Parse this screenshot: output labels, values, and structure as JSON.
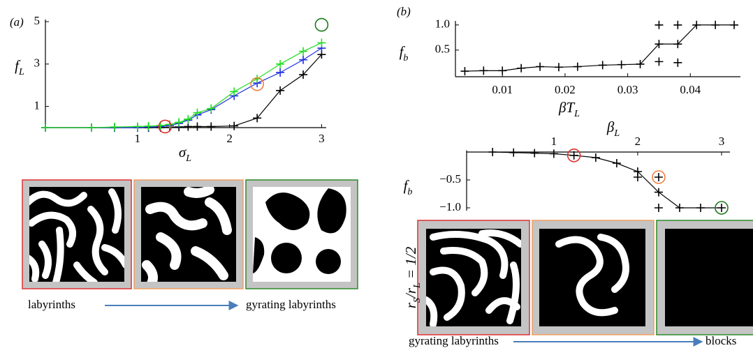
{
  "chart_data": [
    {
      "type": "line",
      "panel_label": "(a)",
      "xlabel": [
        "σ",
        "L"
      ],
      "ylabel": [
        "f",
        "L"
      ],
      "xlim": [
        0,
        3.05
      ],
      "ylim": [
        0,
        5.1
      ],
      "xticks": [
        1,
        2,
        3
      ],
      "yticks": [
        1,
        3,
        5
      ],
      "x": [
        0,
        0.5,
        0.75,
        1,
        1.12,
        1.25,
        1.35,
        1.45,
        1.55,
        1.65,
        1.8,
        2.05,
        2.3,
        2.55,
        2.8,
        3
      ],
      "series": [
        {
          "color": "#000000",
          "values": [
            0,
            0,
            0,
            0,
            0,
            0,
            0.02,
            0.03,
            0.05,
            0.05,
            0.05,
            0.08,
            0.45,
            1.75,
            2.5,
            3.45
          ]
        },
        {
          "color": "#1f2fe0",
          "values": [
            0,
            0,
            0,
            0,
            0.03,
            0.05,
            0.1,
            0.2,
            0.35,
            0.6,
            0.85,
            1.5,
            2.1,
            2.6,
            3.2,
            3.75
          ]
        },
        {
          "color": "#22dd22",
          "values": [
            0,
            0,
            0.03,
            0.05,
            0.07,
            0.1,
            0.15,
            0.25,
            0.4,
            0.7,
            0.9,
            1.7,
            2.3,
            3.0,
            3.6,
            4.0
          ]
        }
      ],
      "highlights": [
        {
          "x": 1.3,
          "y": 0.05,
          "color": "#e03030"
        },
        {
          "x": 2.3,
          "y": 2.05,
          "color": "#f08040"
        },
        {
          "x": 3,
          "y": 4.85,
          "color": "#1a7a1a"
        }
      ],
      "captions": [
        "labyrinths",
        "gyrating labyrinths"
      ]
    },
    {
      "type": "line",
      "panel_label": "(b)",
      "xlabel": [
        "βT",
        "L"
      ],
      "ylabel": [
        "f",
        "b"
      ],
      "xlim": [
        0.0025,
        0.048
      ],
      "ylim": [
        -0.03,
        1.08
      ],
      "xticks": [
        0.01,
        0.02,
        0.03,
        0.04
      ],
      "yticks": [
        0.5,
        {
          "value": 1,
          "label": "1.0"
        }
      ],
      "x": [
        0.004,
        0.007,
        0.01,
        0.013,
        0.016,
        0.019,
        0.022,
        0.026,
        0.029,
        0.032,
        0.035,
        0.038,
        0.041,
        0.044,
        0.047
      ],
      "series": [
        {
          "color": "#000000",
          "values": [
            0.08,
            0.09,
            0.09,
            0.14,
            0.17,
            0.16,
            0.17,
            0.2,
            0.21,
            0.22,
            0.62,
            0.62,
            1.0,
            1.0,
            1.0
          ]
        }
      ],
      "extra_points": {
        "x": [
          0.035,
          0.035,
          0.038,
          0.038
        ],
        "y": [
          1.0,
          0.27,
          1.0,
          0.25
        ]
      }
    },
    {
      "type": "line",
      "xlabel": [
        "β",
        "L"
      ],
      "ylabel": [
        "f",
        "b"
      ],
      "xlim": [
        -0.04,
        3.1
      ],
      "ylim": [
        -1.05,
        0.03
      ],
      "xticks": [
        1,
        2,
        3
      ],
      "yticks": [
        {
          "value": -0.5,
          "label": "−0.5"
        },
        {
          "value": -1,
          "label": "−1.0"
        }
      ],
      "x": [
        0.27,
        0.52,
        0.77,
        1,
        1.24,
        1.5,
        1.75,
        2,
        2.25,
        2.5,
        2.75,
        3
      ],
      "series": [
        {
          "color": "#000000",
          "values": [
            0,
            -0.01,
            -0.02,
            -0.03,
            -0.06,
            -0.1,
            -0.2,
            -0.35,
            -0.72,
            -1,
            -1,
            -1
          ]
        }
      ],
      "extra_points": {
        "x": [
          2,
          2.25,
          2.25
        ],
        "y": [
          -0.45,
          -0.45,
          -1
        ]
      },
      "highlights": [
        {
          "x": 1.24,
          "y": -0.06,
          "color": "#e03030"
        },
        {
          "x": 2.25,
          "y": -0.45,
          "color": "#f08040"
        },
        {
          "x": 3,
          "y": -1,
          "color": "#1a7a1a"
        }
      ],
      "captions": [
        "gyrating labyrinths",
        "blocks"
      ],
      "image_label": [
        "r",
        "S",
        "/r",
        "L",
        " = 1/2"
      ]
    }
  ]
}
